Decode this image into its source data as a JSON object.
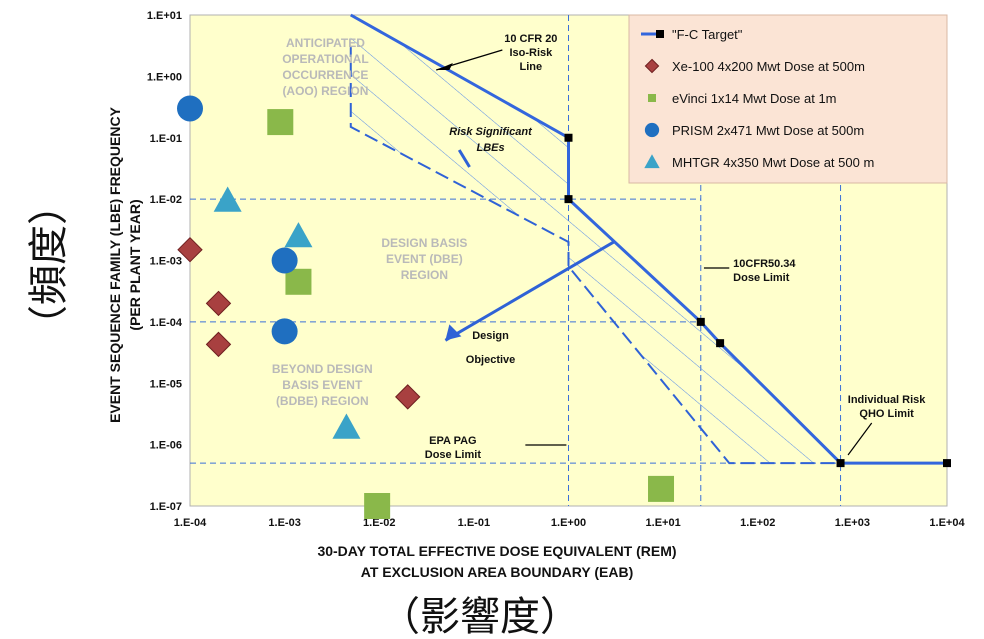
{
  "chart_data": {
    "type": "scatter",
    "xlabel": [
      "30-DAY TOTAL EFFECTIVE DOSE EQUIVALENT (REM)",
      "AT EXCLUSION AREA BOUNDARY (EAB)"
    ],
    "ylabel": [
      "EVENT SEQUENCE FAMILY (LBE) FREQUENCY",
      "(PER PLANT YEAR)"
    ],
    "x_scale": "log",
    "y_scale": "log",
    "xlim": [
      0.0001,
      10000
    ],
    "ylim": [
      1e-07,
      10
    ],
    "x_ticks": [
      "1.E-04",
      "1.E-03",
      "1.E-02",
      "1.E-01",
      "1.E+00",
      "1.E+01",
      "1.E+02",
      "1.E+03",
      "1.E+04"
    ],
    "y_ticks": [
      "1.E-07",
      "1.E-06",
      "1.E-05",
      "1.E-04",
      "1.E-03",
      "1.E-02",
      "1.E-01",
      "1.E+00",
      "1.E+01"
    ],
    "series": [
      {
        "name": "\"F-C Target\"",
        "marker": "square",
        "color": "#000000",
        "line_color": "#3366dd",
        "x": [
          1.0,
          1.0,
          25,
          40,
          750,
          10000
        ],
        "y": [
          0.1,
          0.01,
          0.0001,
          4.5e-05,
          5e-07,
          5e-07
        ]
      },
      {
        "name": "Xe-100 4x200 Mwt Dose at 500m",
        "marker": "diamond",
        "color": "#a84040",
        "x": [
          0.0001,
          0.0002,
          0.0002,
          0.02
        ],
        "y": [
          0.0015,
          0.0002,
          4.3e-05,
          6e-06
        ]
      },
      {
        "name": "eVinci 1x14 Mwt Dose at 1m",
        "marker": "square",
        "color": "#8ab84a",
        "x": [
          0.0009,
          0.0014,
          0.0095,
          9.5
        ],
        "y": [
          0.18,
          0.00045,
          1e-07,
          1.9e-07
        ]
      },
      {
        "name": "PRISM 2x471 Mwt Dose at 500m",
        "marker": "circle",
        "color": "#1f6fc0",
        "x": [
          0.0001,
          0.001,
          0.001
        ],
        "y": [
          0.3,
          0.001,
          7e-05
        ]
      },
      {
        "name": "MHTGR 4x350 Mwt Dose at 500 m",
        "marker": "triangle",
        "color": "#3aa3c8",
        "x": [
          0.00025,
          0.0014,
          0.0045
        ],
        "y": [
          0.0095,
          0.0025,
          1.9e-06
        ]
      }
    ],
    "background_color": "#ffffcc",
    "legend_placement": "top-right",
    "region_labels": {
      "aoo": [
        "ANTICIPATED",
        "OPERATIONAL",
        "OCCURRENCE",
        "(AOO) REGION"
      ],
      "dbe": [
        "DESIGN BASIS",
        "EVENT (DBE)",
        "REGION"
      ],
      "bdbe": [
        "BEYOND DESIGN",
        "BASIS EVENT",
        "(BDBE) REGION"
      ]
    },
    "annotations": {
      "iso_risk": [
        "10 CFR 20",
        "Iso-Risk",
        "Line"
      ],
      "risk_significant": [
        "Risk Significant",
        "LBEs"
      ],
      "design_objective": [
        "Design",
        "Objective"
      ],
      "dose_limit_5034": [
        "10CFR50.34",
        "Dose Limit"
      ],
      "epa_pag": [
        "EPA PAG",
        "Dose Limit"
      ],
      "qho": [
        "Individual Risk",
        "QHO Limit"
      ]
    },
    "jp_labels": {
      "y": "（頻度）",
      "x": "（影響度）"
    }
  }
}
